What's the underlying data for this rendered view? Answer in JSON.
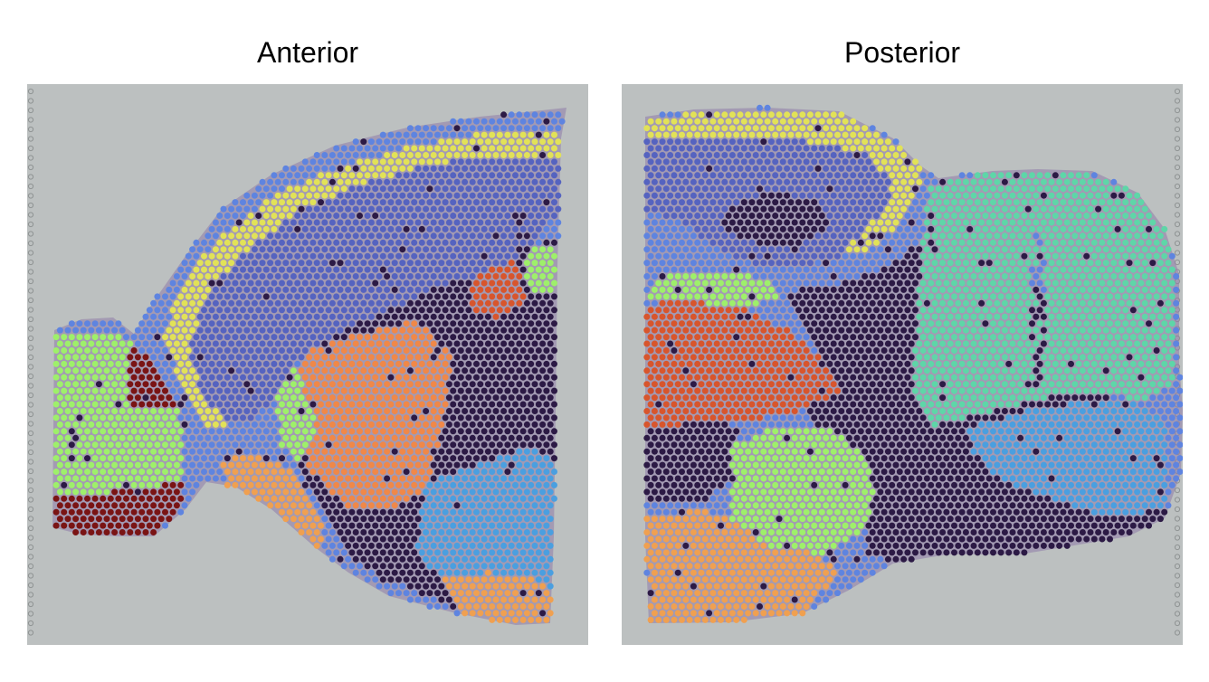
{
  "panels": [
    {
      "id": "anterior",
      "title": "Anterior"
    },
    {
      "id": "posterior",
      "title": "Posterior"
    }
  ],
  "colors": {
    "background": "#bcc0c0",
    "tissue": "#8e7aa8",
    "cluster_yellow": "#e2e257",
    "cluster_blue_dark": "#5563c0",
    "cluster_blue": "#5e84e0",
    "cluster_skyblue": "#4a9fe0",
    "cluster_purple_dark": "#2c1a45",
    "cluster_green_light": "#9ef06a",
    "cluster_teal": "#5ed6a8",
    "cluster_orange": "#f08848",
    "cluster_orange_light": "#f0a050",
    "cluster_red": "#d8552c",
    "cluster_maroon": "#7a1414"
  }
}
